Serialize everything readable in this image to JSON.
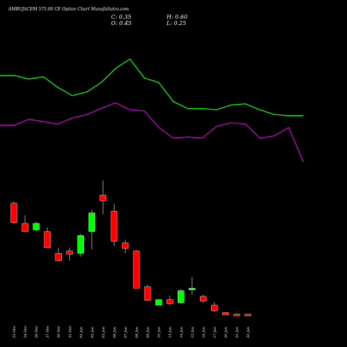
{
  "header": {
    "title": "AMBUJACEM 575.00  CE Option  Chart MunafaSutra.com",
    "close": "C: 0.35",
    "open": "O: 0.45",
    "high": "H: 0.60",
    "low": "L: 0.25"
  },
  "colors": {
    "background": "#000000",
    "up_candle": "#00ff00",
    "down_candle": "#ff0000",
    "wick": "#999999",
    "line_green": "#00ff00",
    "line_magenta": "#cc00cc"
  },
  "chart_data": {
    "type": "candlestick",
    "x": [
      "23 Dec",
      "24 Dec",
      "26 Dec",
      "27 Dec",
      "30 Dec",
      "31 Dec",
      "01 Jan",
      "02 Jan",
      "03 Jan",
      "06 Jan",
      "07 Jan",
      "08 Jan",
      "09 Jan",
      "10 Jan",
      "13 Jan",
      "14 Jan",
      "15 Jan",
      "16 Jan",
      "17 Jan",
      "20 Jan",
      "21 Jan",
      "22 Jan"
    ],
    "ohlc": [
      {
        "o": 10.5,
        "h": 10.7,
        "l": 8.0,
        "c": 8.1
      },
      {
        "o": 8.0,
        "h": 9.0,
        "l": 7.0,
        "c": 7.0
      },
      {
        "o": 7.2,
        "h": 8.2,
        "l": 7.1,
        "c": 8.0
      },
      {
        "o": 7.0,
        "h": 7.5,
        "l": 5.0,
        "c": 5.0
      },
      {
        "o": 4.3,
        "h": 5.0,
        "l": 3.3,
        "c": 3.4
      },
      {
        "o": 4.6,
        "h": 5.0,
        "l": 3.4,
        "c": 4.2
      },
      {
        "o": 4.3,
        "h": 6.7,
        "l": 3.9,
        "c": 6.5
      },
      {
        "o": 7.0,
        "h": 9.7,
        "l": 4.8,
        "c": 9.3
      },
      {
        "o": 11.5,
        "h": 13.3,
        "l": 9.1,
        "c": 10.8
      },
      {
        "o": 9.5,
        "h": 10.4,
        "l": 5.2,
        "c": 5.8
      },
      {
        "o": 5.6,
        "h": 6.0,
        "l": 4.3,
        "c": 4.9
      },
      {
        "o": 4.6,
        "h": 4.7,
        "l": 0.0,
        "c": 0.0
      },
      {
        "o": 0.2,
        "h": 0.4,
        "l": -1.5,
        "c": -1.5
      },
      {
        "o": -2.1,
        "h": -1.4,
        "l": -2.1,
        "c": -1.4
      },
      {
        "o": -1.4,
        "h": -0.9,
        "l": -2.1,
        "c": -1.9
      },
      {
        "o": -1.8,
        "h": -0.1,
        "l": -1.9,
        "c": -0.3
      },
      {
        "o": -0.2,
        "h": 1.4,
        "l": -0.8,
        "c": 0.0
      },
      {
        "o": -1.0,
        "h": -0.8,
        "l": -1.8,
        "c": -1.6
      },
      {
        "o": -2.1,
        "h": -1.7,
        "l": -2.9,
        "c": -2.8
      },
      {
        "o": -3.0,
        "h": -3.0,
        "l": -3.3,
        "c": -3.3
      },
      {
        "o": -3.2,
        "h": -3.1,
        "l": -3.4,
        "c": -3.4
      },
      {
        "o": -3.2,
        "h": -3.2,
        "l": -3.4,
        "c": -3.4
      }
    ],
    "series": [
      {
        "values": [
          90,
          90,
          87,
          89,
          80,
          73,
          76,
          84,
          96,
          104,
          88,
          84,
          68,
          62,
          62,
          61,
          65,
          66,
          61,
          57,
          56,
          56
        ]
      },
      {
        "values": [
          48,
          48,
          53,
          51,
          49,
          54,
          57,
          62,
          67,
          61,
          60,
          46,
          37,
          38,
          37,
          47,
          50,
          49,
          37,
          39,
          46,
          17
        ]
      }
    ],
    "xlabel": "",
    "ylabel": "",
    "grid": false,
    "legend": "none"
  }
}
